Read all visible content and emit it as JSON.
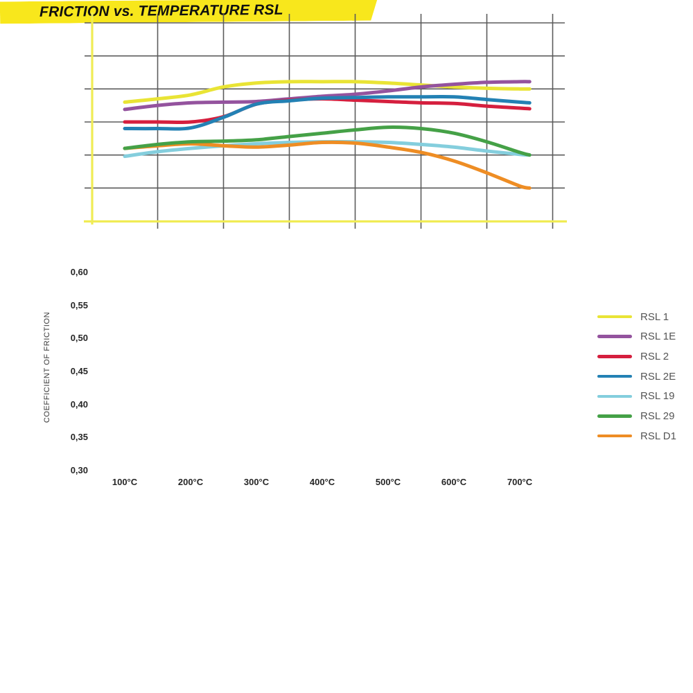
{
  "banner": {
    "title": "FRICTION vs. TEMPERATURE RSL",
    "bg_color": "#f8e71c",
    "text_color": "#101010"
  },
  "chart_data": {
    "type": "line",
    "title": "FRICTION vs. TEMPERATURE RSL",
    "ylabel": "COEFFICIENT OF FRICTION",
    "xlabel": "",
    "x_unit": "°C",
    "ylim": [
      0.3,
      0.6
    ],
    "grid": true,
    "legend_position": "right",
    "x": [
      100,
      150,
      200,
      250,
      300,
      350,
      400,
      450,
      500,
      550,
      600,
      650,
      700,
      715
    ],
    "x_tick_labels": [
      "100°C",
      "200°C",
      "300°C",
      "400°C",
      "500°C",
      "600°C",
      "700°C"
    ],
    "x_tick_values": [
      100,
      200,
      300,
      400,
      500,
      600,
      700
    ],
    "y_ticks": [
      0.6,
      0.55,
      0.5,
      0.45,
      0.4,
      0.35,
      0.3
    ],
    "y_tick_labels": [
      "0,60",
      "0,55",
      "0,50",
      "0,45",
      "0,40",
      "0,35",
      "0,30"
    ],
    "series": [
      {
        "name": "RSL 1",
        "color": "#e9e435",
        "values": [
          0.48,
          0.485,
          0.491,
          0.503,
          0.509,
          0.511,
          0.511,
          0.511,
          0.509,
          0.506,
          0.503,
          0.501,
          0.5,
          0.5
        ]
      },
      {
        "name": "RSL 1E",
        "color": "#94539e",
        "values": [
          0.469,
          0.475,
          0.479,
          0.48,
          0.481,
          0.485,
          0.489,
          0.492,
          0.497,
          0.503,
          0.507,
          0.51,
          0.511,
          0.511
        ]
      },
      {
        "name": "RSL 2",
        "color": "#d51f3e",
        "values": [
          0.45,
          0.45,
          0.45,
          0.458,
          0.477,
          0.483,
          0.485,
          0.483,
          0.481,
          0.479,
          0.478,
          0.474,
          0.471,
          0.47
        ]
      },
      {
        "name": "RSL 2E",
        "color": "#2381b4",
        "values": [
          0.44,
          0.44,
          0.441,
          0.457,
          0.477,
          0.482,
          0.486,
          0.487,
          0.488,
          0.488,
          0.488,
          0.484,
          0.48,
          0.479
        ]
      },
      {
        "name": "RSL 19",
        "color": "#84cedd",
        "values": [
          0.398,
          0.405,
          0.41,
          0.414,
          0.417,
          0.419,
          0.42,
          0.42,
          0.419,
          0.416,
          0.412,
          0.406,
          0.401,
          0.4
        ]
      },
      {
        "name": "RSL 29",
        "color": "#45a147",
        "values": [
          0.41,
          0.416,
          0.42,
          0.421,
          0.423,
          0.428,
          0.433,
          0.438,
          0.442,
          0.44,
          0.433,
          0.42,
          0.404,
          0.4
        ]
      },
      {
        "name": "RSL D1",
        "color": "#ee8d24",
        "values": [
          0.41,
          0.414,
          0.417,
          0.414,
          0.412,
          0.415,
          0.419,
          0.418,
          0.412,
          0.404,
          0.391,
          0.373,
          0.353,
          0.35
        ]
      }
    ],
    "draw_order": [
      0,
      1,
      2,
      3,
      4,
      6,
      5
    ]
  },
  "style": {
    "grid_color": "#5b5b5b",
    "axis_color": "#f0ec55",
    "tick_label_color": "#262626",
    "axis_title_color": "#3a3a3a",
    "legend_text_color": "#555555",
    "line_width": 5
  }
}
